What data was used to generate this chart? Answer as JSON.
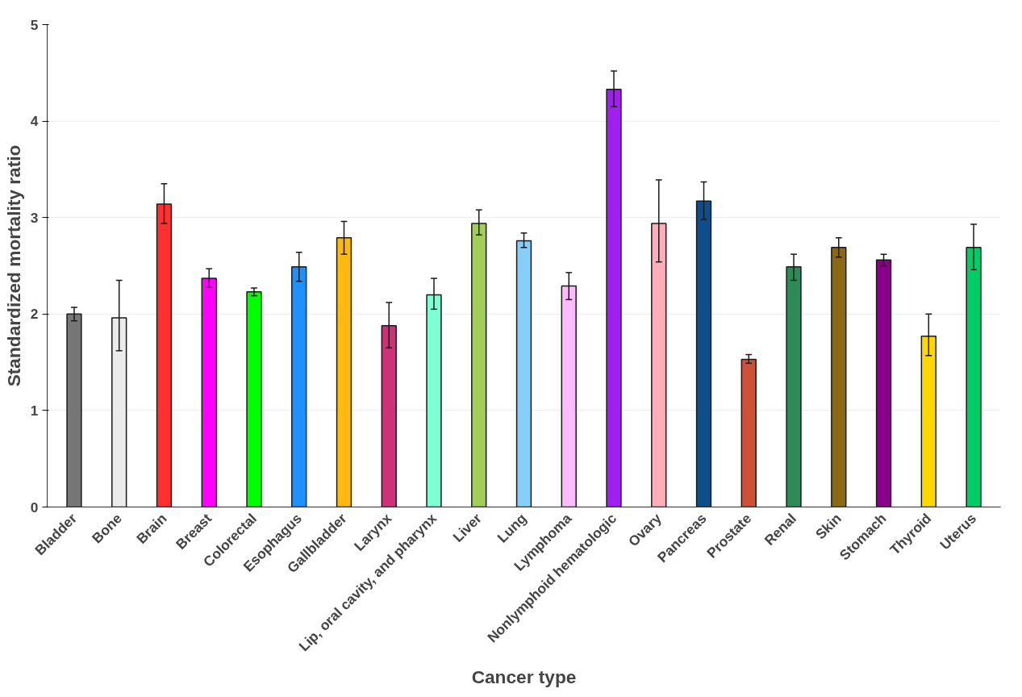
{
  "chart_data": {
    "type": "bar",
    "xlabel": "Cancer type",
    "ylabel": "Standardized mortality ratio",
    "categories": [
      "Bladder",
      "Bone",
      "Brain",
      "Breast",
      "Colorectal",
      "Esophagus",
      "Gallbladder",
      "Larynx",
      "Lip, oral cavity, and pharynx",
      "Liver",
      "Lung",
      "Lymphoma",
      "Nonlymphoid hematologic",
      "Ovary",
      "Pancreas",
      "Prostate",
      "Renal",
      "Skin",
      "Stomach",
      "Thyroid",
      "Uterus"
    ],
    "values": [
      2.0,
      1.96,
      3.14,
      2.37,
      2.23,
      2.49,
      2.79,
      1.88,
      2.2,
      2.94,
      2.76,
      2.29,
      4.33,
      2.94,
      3.17,
      1.53,
      2.49,
      2.69,
      2.56,
      1.77,
      2.69
    ],
    "errors": [
      [
        1.93,
        2.07
      ],
      [
        1.62,
        2.35
      ],
      [
        2.94,
        3.35
      ],
      [
        2.28,
        2.47
      ],
      [
        2.19,
        2.27
      ],
      [
        2.34,
        2.64
      ],
      [
        2.62,
        2.96
      ],
      [
        1.65,
        2.12
      ],
      [
        2.05,
        2.37
      ],
      [
        2.82,
        3.08
      ],
      [
        2.69,
        2.84
      ],
      [
        2.15,
        2.43
      ],
      [
        4.15,
        4.52
      ],
      [
        2.54,
        3.39
      ],
      [
        2.98,
        3.37
      ],
      [
        1.49,
        1.58
      ],
      [
        2.35,
        2.62
      ],
      [
        2.59,
        2.79
      ],
      [
        2.5,
        2.62
      ],
      [
        1.57,
        2.0
      ],
      [
        2.46,
        2.93
      ]
    ],
    "colors": [
      "#767676",
      "#ebebeb",
      "#ff3030",
      "#ff00ff",
      "#00ff00",
      "#1e90ff",
      "#ffb90f",
      "#cd3278",
      "#7fffd4",
      "#a2cd5a",
      "#87cefa",
      "#ffbbff",
      "#a020f0",
      "#ffaeb9",
      "#104e8b",
      "#cd5038",
      "#2e8b57",
      "#8b6914",
      "#8b008b",
      "#ffd700",
      "#00cd66"
    ],
    "ylim": [
      0,
      5
    ],
    "yticks": [
      0,
      1,
      2,
      3,
      4,
      5
    ],
    "grid": "y"
  }
}
